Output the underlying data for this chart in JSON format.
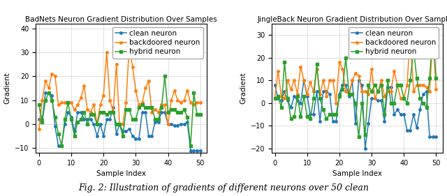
{
  "title1": "BadNets Neuron Gradient Distribution Over Samples",
  "title2": "JingleBack Neuron Gradient Distribution Over Samples",
  "xlabel": "Sample Index",
  "ylabel": "Gradient",
  "legend_labels": [
    "clean neuron",
    "backdoored neuron",
    "hybrid neuron"
  ],
  "colors": [
    "#1f77b4",
    "#ff7f0e",
    "#2ca02c"
  ],
  "markers": [
    "o",
    "o",
    "s"
  ],
  "linewidth": 1.1,
  "markersize": 2.5,
  "badnets": {
    "clean": [
      2,
      2,
      13,
      13,
      12,
      -1,
      -9,
      -9,
      0,
      5,
      3,
      -3,
      5,
      5,
      2,
      2,
      2,
      0,
      -5,
      0,
      -5,
      2,
      2,
      7,
      -4,
      0,
      -3,
      -3,
      -2,
      -5,
      -6,
      -6,
      5,
      5,
      -5,
      -5,
      1,
      1,
      5,
      5,
      0,
      0,
      -0.5,
      -0.5,
      0,
      0,
      1,
      -11,
      -11,
      -11,
      -11
    ],
    "backdoored": [
      -2,
      10,
      18,
      15,
      21,
      20,
      8,
      9,
      9,
      9,
      9,
      6,
      8,
      11,
      16,
      6,
      5,
      8,
      0,
      8,
      12,
      30,
      10,
      5,
      25,
      0,
      0,
      9,
      33,
      24,
      14,
      8,
      9,
      15,
      18,
      5,
      6,
      5,
      8,
      8,
      0,
      10,
      14,
      10,
      9,
      10,
      14,
      9,
      8,
      9,
      9
    ],
    "hybrid": [
      8,
      1,
      10,
      13,
      10,
      3,
      -4,
      -9,
      2,
      9,
      2,
      -5,
      1,
      2,
      5,
      0,
      4,
      4,
      0,
      5,
      5,
      4,
      5,
      5,
      0,
      0,
      -5,
      6,
      6,
      2,
      2,
      7,
      8,
      7,
      7,
      7,
      2,
      2,
      7,
      20,
      5,
      6,
      6,
      5,
      5,
      6,
      3,
      -9,
      13,
      4,
      4
    ]
  },
  "jingleback": {
    "clean": [
      8,
      2,
      1,
      5,
      1,
      -2,
      3,
      1,
      0,
      10,
      3,
      -5,
      -5,
      5,
      -8,
      5,
      5,
      4,
      -8,
      -8,
      4,
      8,
      8,
      3,
      10,
      -9,
      10,
      8,
      -20,
      -9,
      2,
      2,
      1,
      1,
      -8,
      7,
      7,
      -5,
      -3,
      -5,
      -5,
      -12,
      -12,
      -5,
      -11,
      -3,
      4,
      5,
      -15,
      -15,
      -15
    ],
    "backdoored": [
      2,
      14,
      3,
      2,
      10,
      6,
      10,
      4,
      16,
      10,
      4,
      9,
      5,
      15,
      4,
      10,
      3,
      10,
      10,
      0,
      18,
      15,
      5,
      4,
      10,
      13,
      12,
      5,
      5,
      4,
      15,
      2,
      5,
      10,
      3,
      5,
      5,
      14,
      8,
      2,
      2,
      8,
      30,
      5,
      8,
      8,
      8,
      7,
      5,
      30,
      6
    ],
    "hybrid": [
      2,
      3,
      -2,
      18,
      2,
      -7,
      -6,
      3,
      -6,
      3,
      -6,
      -7,
      2,
      17,
      2,
      -3,
      -7,
      -5,
      -5,
      -5,
      3,
      6,
      20,
      4,
      4,
      0,
      -15,
      0,
      -14,
      8,
      5,
      8,
      5,
      8,
      -5,
      10,
      0,
      0,
      8,
      8,
      2,
      0,
      10,
      24,
      11,
      2,
      0,
      -2,
      11,
      31,
      11
    ]
  },
  "badnets_ylim": [
    -12,
    42
  ],
  "badnets_yticks": [
    -10,
    0,
    10,
    20,
    30,
    40
  ],
  "jingleback_ylim": [
    -22,
    35
  ],
  "jingleback_yticks": [
    -20,
    -10,
    0,
    10,
    20,
    30
  ],
  "xlim": [
    -1,
    52
  ],
  "xticks": [
    0,
    10,
    20,
    30,
    40,
    50
  ],
  "caption": "Fig. 2: Illustration of gradients of different neurons over 50 clean",
  "caption_fontsize": 9,
  "title_fontsize": 7.5,
  "axis_fontsize": 7.5,
  "tick_fontsize": 7,
  "legend_fontsize": 7.5
}
